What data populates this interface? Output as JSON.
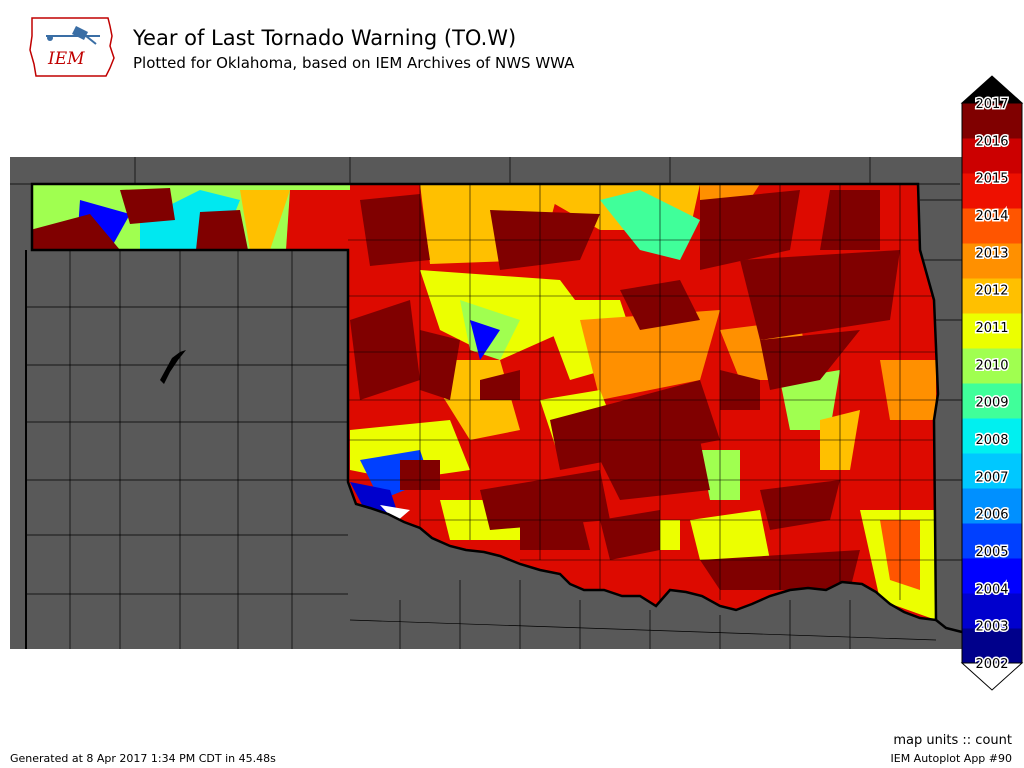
{
  "header": {
    "logo_text": "IEM",
    "title": "Year of Last Tornado Warning (TO.W)",
    "subtitle": "Plotted for Oklahoma, based on IEM Archives of NWS WWA"
  },
  "legend": {
    "years": [
      "2002",
      "2003",
      "2004",
      "2005",
      "2006",
      "2007",
      "2008",
      "2009",
      "2010",
      "2011",
      "2012",
      "2013",
      "2014",
      "2015",
      "2016",
      "2017"
    ],
    "colors": [
      "#00008b",
      "#0000cd",
      "#0000ff",
      "#0040ff",
      "#0090ff",
      "#00c8ff",
      "#00f0f0",
      "#40ff9a",
      "#a0ff50",
      "#ecff00",
      "#ffc000",
      "#ff9000",
      "#ff5500",
      "#ee1000",
      "#cc0000",
      "#800000"
    ],
    "over_color": "#000000",
    "under_color": "#ffffff"
  },
  "map": {
    "background_color": "#595959",
    "county_line_color": "#000000",
    "description_colors": {
      "missing": "#595959"
    }
  },
  "footer": {
    "units": "map units :: count",
    "generated": "Generated at 8 Apr 2017 1:34 PM CDT in 45.48s",
    "app": "IEM Autoplot App #90"
  }
}
